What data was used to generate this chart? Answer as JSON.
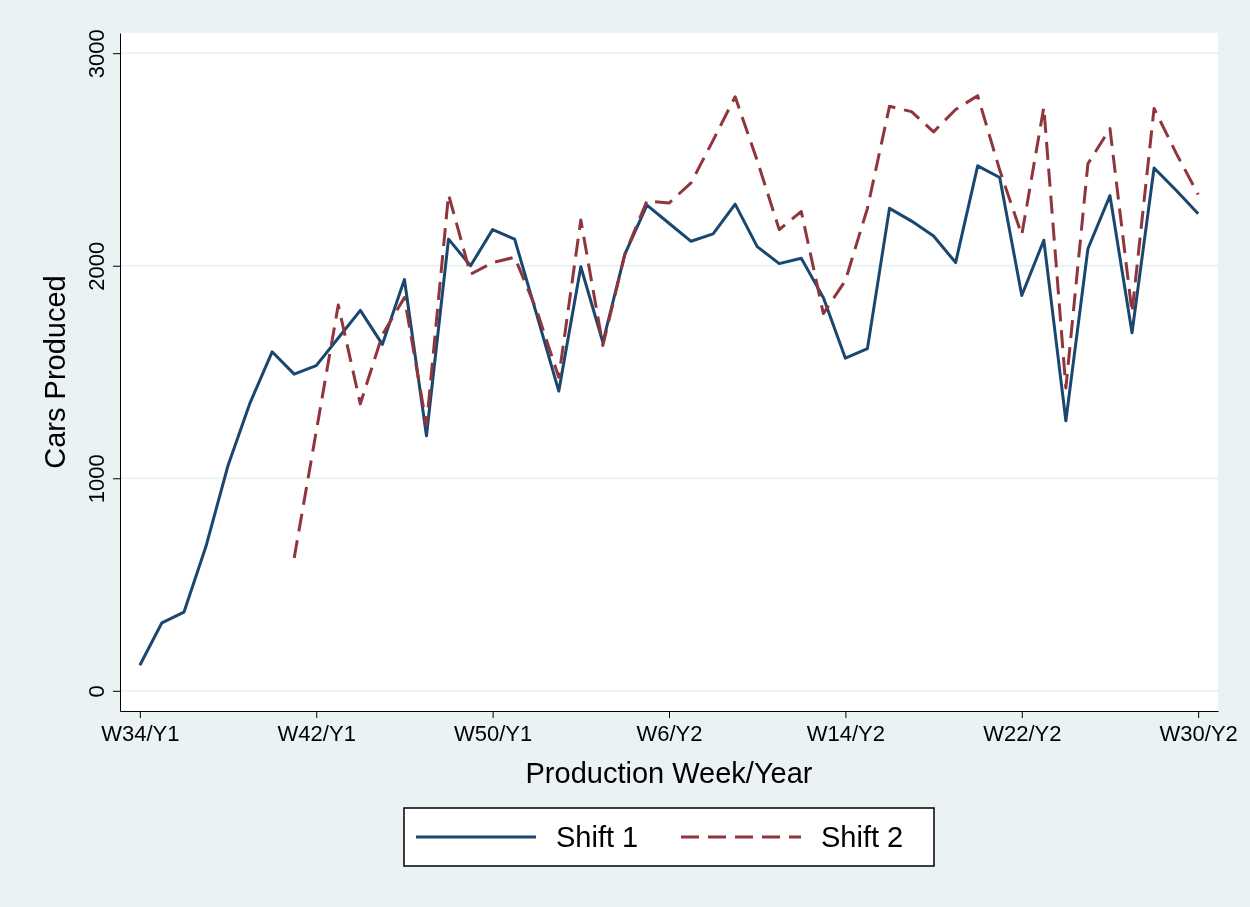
{
  "chart_data": {
    "type": "line",
    "xlabel": "Production Week/Year",
    "ylabel": "Cars Produced",
    "categories": [
      "W34/Y1",
      null,
      null,
      null,
      null,
      null,
      null,
      null,
      "W42/Y1",
      null,
      null,
      null,
      null,
      null,
      null,
      null,
      "W50/Y1",
      null,
      null,
      null,
      null,
      null,
      null,
      null,
      "W6/Y2",
      null,
      null,
      null,
      null,
      null,
      null,
      null,
      "W14/Y2",
      null,
      null,
      null,
      null,
      null,
      null,
      null,
      "W22/Y2",
      null,
      null,
      null,
      null,
      null,
      null,
      null,
      "W30/Y2"
    ],
    "ylim": [
      -95,
      3095
    ],
    "yticks": [
      0,
      1000,
      2000,
      3000
    ],
    "grid": "y",
    "legend": "bottom",
    "series": [
      {
        "name": "Shift 1",
        "color": "#1a476f",
        "line_style": "solid",
        "values": [
          120,
          320,
          370,
          680,
          1060,
          1355,
          1595,
          1490,
          1530,
          1660,
          1790,
          1630,
          1935,
          1200,
          2125,
          2000,
          2170,
          2125,
          1770,
          1410,
          1995,
          1640,
          2055,
          2285,
          2200,
          2115,
          2150,
          2290,
          2090,
          2010,
          2035,
          1850,
          1565,
          1610,
          2270,
          2210,
          2140,
          2015,
          2470,
          2415,
          1860,
          2120,
          1270,
          2080,
          2330,
          1685,
          2460,
          2355,
          2245
        ]
      },
      {
        "name": "Shift 2",
        "color": "#90353b",
        "line_style": "dashed",
        "values": [
          null,
          null,
          null,
          null,
          null,
          null,
          null,
          625,
          1220,
          1815,
          1350,
          1675,
          1850,
          1250,
          2335,
          1960,
          2015,
          2040,
          1790,
          1475,
          2215,
          1625,
          2055,
          2305,
          2295,
          2390,
          2590,
          2795,
          2495,
          2170,
          2255,
          1775,
          1930,
          2270,
          2750,
          2725,
          2630,
          2735,
          2800,
          2450,
          2145,
          2745,
          1425,
          2480,
          2645,
          1780,
          2740,
          2530,
          2335
        ]
      }
    ]
  }
}
